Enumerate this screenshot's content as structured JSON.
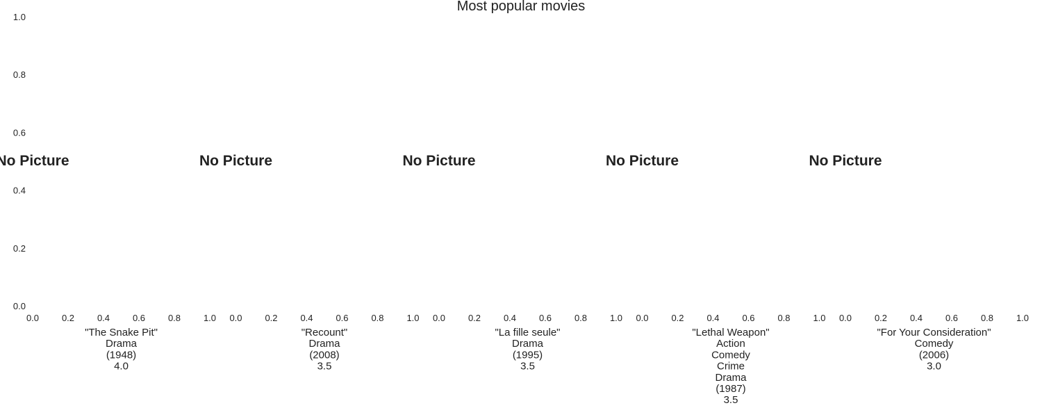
{
  "chart_data": {
    "type": "other",
    "title": "Most popular movies",
    "subplot_count": 5,
    "xlim": [
      0.0,
      1.0
    ],
    "ylim": [
      0.0,
      1.0
    ],
    "x_tick_labels": [
      "0.0",
      "0.2",
      "0.4",
      "0.6",
      "0.8",
      "1.0"
    ],
    "y_tick_labels": [
      "0.0",
      "0.2",
      "0.4",
      "0.6",
      "0.8",
      "1.0"
    ],
    "grid": false,
    "placeholder_text": "No Picture",
    "movies": [
      {
        "title": "\"The Snake Pit\"",
        "genres": [
          "Drama"
        ],
        "year": "(1948)",
        "rating": "4.0"
      },
      {
        "title": "\"Recount\"",
        "genres": [
          "Drama"
        ],
        "year": "(2008)",
        "rating": "3.5"
      },
      {
        "title": "\"La fille seule\"",
        "genres": [
          "Drama"
        ],
        "year": "(1995)",
        "rating": "3.5"
      },
      {
        "title": "\"Lethal Weapon\"",
        "genres": [
          "Action",
          "Comedy",
          "Crime",
          "Drama"
        ],
        "year": "(1987)",
        "rating": "3.5"
      },
      {
        "title": "\"For Your Consideration\"",
        "genres": [
          "Comedy"
        ],
        "year": "(2006)",
        "rating": "3.0"
      }
    ]
  }
}
